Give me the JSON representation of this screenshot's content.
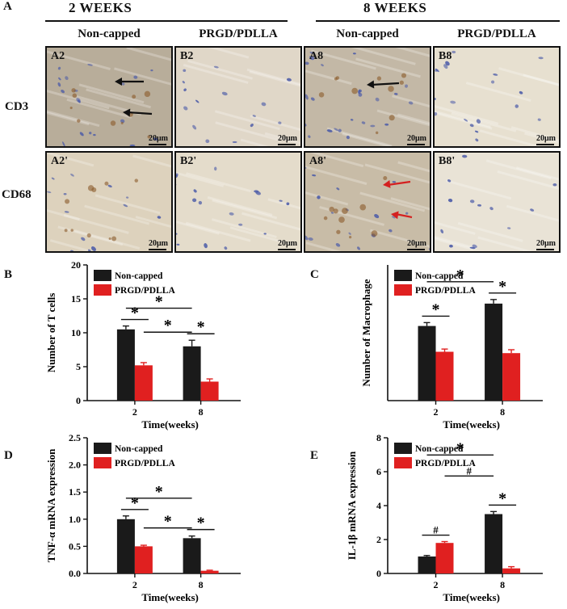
{
  "figure": {
    "panel_a_letter": "A",
    "week_headers": [
      "2 WEEKS",
      "8 WEEKS"
    ],
    "column_labels": [
      "Non-capped",
      "PRGD/PDLLA",
      "Non-capped",
      "PRGD/PDLLA"
    ],
    "row_labels": [
      "CD3",
      "CD68"
    ],
    "tile_labels": [
      [
        "A2",
        "B2",
        "A8",
        "B8"
      ],
      [
        "A2'",
        "B2'",
        "A8'",
        "B8'"
      ]
    ],
    "scale_text": "20μm",
    "tile_tones": [
      [
        "#b8ad9a",
        "#e0d7c8",
        "#c3b8a6",
        "#e7e0d0"
      ],
      [
        "#ddd2bd",
        "#e4dccb",
        "#c8bca7",
        "#e9e3d6"
      ]
    ],
    "nuclei_color": "#4a5aa8",
    "stain_color": "#8a5a2a",
    "arrow_colors": {
      "CD3": "#111111",
      "CD68": "#d42020"
    }
  },
  "colors": {
    "non_capped": "#1a1a1a",
    "prgd": "#e02020"
  },
  "chart_data": [
    {
      "panel": "B",
      "type": "bar",
      "categories": [
        "2",
        "8"
      ],
      "xlabel": "Time(weeks)",
      "ylabel": "Number of T cells",
      "ylim": [
        0,
        20
      ],
      "yticks": [
        0,
        5,
        10,
        15,
        20
      ],
      "series": [
        {
          "name": "Non-capped",
          "values": [
            10.5,
            8.0
          ],
          "errors": [
            0.5,
            0.9
          ]
        },
        {
          "name": "PRGD/PDLLA",
          "values": [
            5.2,
            2.8
          ],
          "errors": [
            0.4,
            0.4
          ]
        }
      ],
      "annotations": [
        {
          "text": "*",
          "between": "within-2"
        },
        {
          "text": "*",
          "between": "within-8"
        },
        {
          "text": "*",
          "between": "nc2-nc8"
        },
        {
          "text": "*",
          "between": "pr2-nc8"
        }
      ],
      "legend": "top-left"
    },
    {
      "panel": "C",
      "type": "bar",
      "categories": [
        "2",
        "8"
      ],
      "xlabel": "Time(weeks)",
      "ylabel": "Number of Macrophage",
      "ylim": [
        0,
        20
      ],
      "yticks": [],
      "series": [
        {
          "name": "Non-capped",
          "values": [
            11.0,
            14.3
          ],
          "errors": [
            0.5,
            0.6
          ]
        },
        {
          "name": "PRGD/PDLLA",
          "values": [
            7.2,
            7.0
          ],
          "errors": [
            0.4,
            0.5
          ]
        }
      ],
      "annotations": [
        {
          "text": "*",
          "between": "within-2"
        },
        {
          "text": "*",
          "between": "within-8"
        },
        {
          "text": "*",
          "between": "nc2-nc8"
        }
      ],
      "legend": "top-left"
    },
    {
      "panel": "D",
      "type": "bar",
      "categories": [
        "2",
        "8"
      ],
      "xlabel": "Time(weeks)",
      "ylabel": "TNF-α mRNA expression",
      "ylim": [
        0,
        2.5
      ],
      "yticks": [
        "0.0",
        "0.5",
        "1.0",
        "1.5",
        "2.0",
        "2.5"
      ],
      "series": [
        {
          "name": "Non-capped",
          "values": [
            1.0,
            0.65
          ],
          "errors": [
            0.06,
            0.04
          ]
        },
        {
          "name": "PRGD/PDLLA",
          "values": [
            0.5,
            0.05
          ],
          "errors": [
            0.02,
            0.01
          ]
        }
      ],
      "annotations": [
        {
          "text": "*",
          "between": "within-2"
        },
        {
          "text": "*",
          "between": "within-8"
        },
        {
          "text": "*",
          "between": "nc2-nc8"
        },
        {
          "text": "*",
          "between": "pr2-nc8"
        }
      ],
      "legend": "top-left"
    },
    {
      "panel": "E",
      "type": "bar",
      "categories": [
        "2",
        "8"
      ],
      "xlabel": "Time(weeks)",
      "ylabel": "IL-1β mRNA expression",
      "ylim": [
        0,
        8
      ],
      "yticks": [
        "0",
        "2",
        "4",
        "6",
        "8"
      ],
      "series": [
        {
          "name": "Non-capped",
          "values": [
            1.0,
            3.5
          ],
          "errors": [
            0.06,
            0.15
          ]
        },
        {
          "name": "PRGD/PDLLA",
          "values": [
            1.8,
            0.3
          ],
          "errors": [
            0.08,
            0.1
          ]
        }
      ],
      "annotations": [
        {
          "text": "#",
          "between": "within-2"
        },
        {
          "text": "*",
          "between": "within-8"
        },
        {
          "text": "#",
          "between": "pr2-nc8"
        },
        {
          "text": "*",
          "between": "nc2-nc8"
        }
      ],
      "legend": "top-left"
    }
  ]
}
